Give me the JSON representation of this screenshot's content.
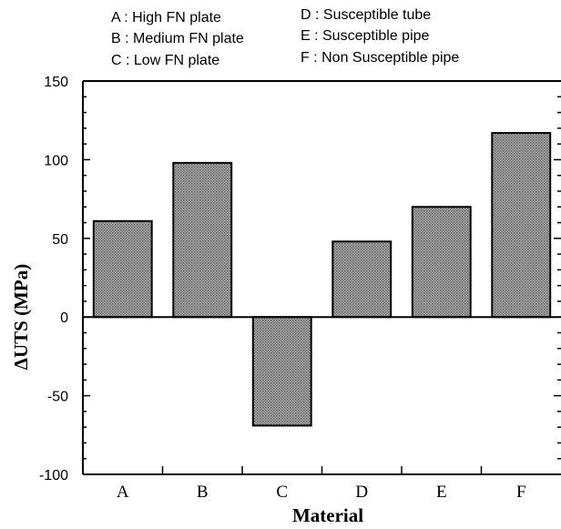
{
  "chart_data": {
    "type": "bar",
    "categories": [
      "A",
      "B",
      "C",
      "D",
      "E",
      "F"
    ],
    "values": [
      61,
      98,
      -69,
      48,
      70,
      117
    ],
    "ylim": [
      -100,
      150
    ],
    "yticks": [
      150,
      100,
      50,
      0,
      -50,
      -100
    ],
    "ytick_labels": [
      "150",
      "100",
      "50",
      "0",
      "-50",
      "-100"
    ],
    "xlabel": "Material",
    "ylabel": "ΔUTS (MPa)",
    "legend": [
      "A : High FN plate",
      "B : Medium FN plate",
      "C : Low FN plate",
      "D : Susceptible tube",
      "E : Susceptible pipe",
      "F : Non Susceptible pipe"
    ],
    "bar_color": "#8c8c8c",
    "grid": false
  }
}
